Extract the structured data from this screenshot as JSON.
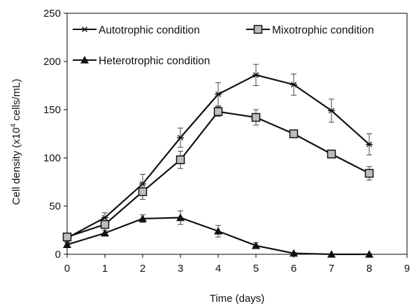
{
  "chart_data": {
    "type": "line",
    "xlabel": "Time (days)",
    "ylabel_parts": [
      "Cell density (x10",
      "4",
      " cells/mL)"
    ],
    "xlim": [
      0,
      9
    ],
    "ylim": [
      0,
      250
    ],
    "xticks": [
      0,
      1,
      2,
      3,
      4,
      5,
      6,
      7,
      8,
      9
    ],
    "yticks": [
      0,
      50,
      100,
      150,
      200,
      250
    ],
    "grid": false,
    "legend_placement": "top",
    "color": "#111111",
    "series": [
      {
        "name": "Autotrophic condition",
        "marker": "star",
        "x": [
          0,
          1,
          2,
          3,
          4,
          5,
          6,
          7,
          8
        ],
        "y": [
          17,
          38,
          73,
          121,
          166,
          186,
          176,
          149,
          114
        ],
        "err": [
          4,
          5,
          10,
          10,
          12,
          11,
          11,
          12,
          11
        ]
      },
      {
        "name": "Mixotrophic condition",
        "marker": "square",
        "x": [
          0,
          1,
          2,
          3,
          4,
          5,
          6,
          7,
          8
        ],
        "y": [
          18,
          31,
          65,
          98,
          148,
          142,
          125,
          104,
          84
        ],
        "err": [
          4,
          4,
          8,
          9,
          5,
          8,
          4,
          4,
          7
        ]
      },
      {
        "name": "Heterotrophic condition",
        "marker": "triangle",
        "x": [
          0,
          1,
          2,
          3,
          4,
          5,
          6,
          7,
          8
        ],
        "y": [
          10,
          22,
          37,
          38,
          24,
          9,
          1,
          0,
          0
        ],
        "err": [
          2,
          3,
          4,
          7,
          6,
          3,
          1,
          0.5,
          0.5
        ]
      }
    ]
  }
}
